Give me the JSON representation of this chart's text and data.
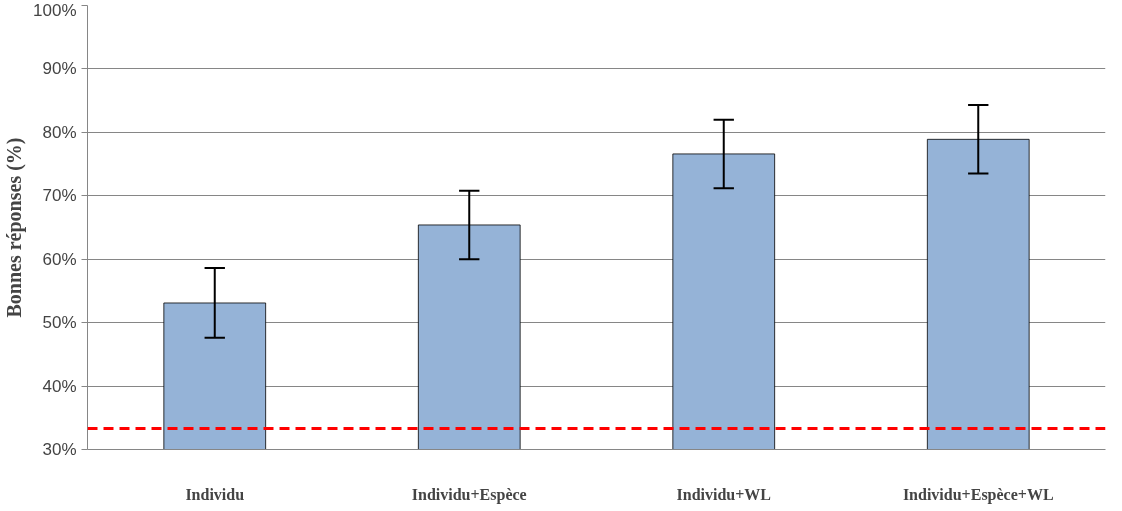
{
  "chart_data": {
    "type": "bar",
    "ylabel": "Bonnes réponses (%)",
    "categories": [
      "Individu",
      "Individu+Espèce",
      "Individu+WL",
      "Individu+Espèce+WL"
    ],
    "series": [
      {
        "color": "#95b3d7",
        "values": [
          53.1,
          65.4,
          76.6,
          78.9
        ],
        "errors": [
          5.5,
          5.4,
          5.4,
          5.4
        ]
      }
    ],
    "ylim": [
      30,
      100
    ],
    "yticks": [
      {
        "value": 30,
        "label": "30%"
      },
      {
        "value": 40,
        "label": "40%"
      },
      {
        "value": 50,
        "label": "50%"
      },
      {
        "value": 60,
        "label": "60%"
      },
      {
        "value": 70,
        "label": "70%"
      },
      {
        "value": 80,
        "label": "80%"
      },
      {
        "value": 90,
        "label": "90%"
      },
      {
        "value": 100,
        "label": "100%"
      }
    ],
    "grid": "y",
    "ref_lines": [
      {
        "axis": "y",
        "value": 33.3,
        "color": "#ff0000",
        "line_style": "dashed"
      }
    ]
  }
}
